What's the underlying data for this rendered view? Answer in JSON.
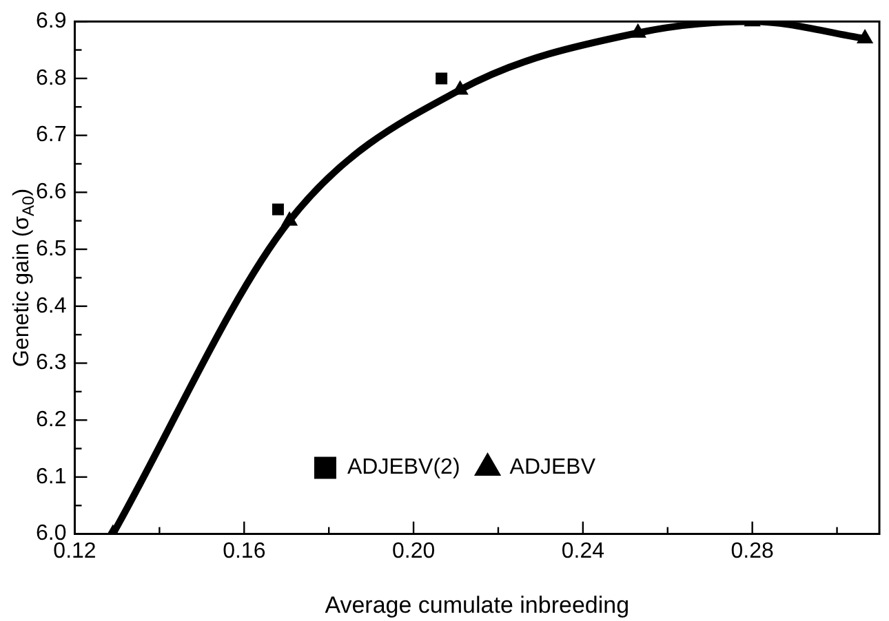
{
  "chart_data": {
    "type": "scatter",
    "xlabel": "Average cumulate inbreeding",
    "ylabel": "Genetic gain (σ$_{A0}$)",
    "xlim": [
      0.12,
      0.31
    ],
    "xticks": [
      {
        "value": 0.12,
        "label": "0.12"
      },
      {
        "value": 0.14,
        "label": null
      },
      {
        "value": 0.16,
        "label": "0.16"
      },
      {
        "value": 0.18,
        "label": null
      },
      {
        "value": 0.2,
        "label": "0.20"
      },
      {
        "value": 0.22,
        "label": null
      },
      {
        "value": 0.24,
        "label": "0.24"
      },
      {
        "value": 0.26,
        "label": null
      },
      {
        "value": 0.28,
        "label": "0.28"
      },
      {
        "value": 0.3,
        "label": null
      }
    ],
    "ylim": [
      6.0,
      6.9
    ],
    "yticks": [
      {
        "value": 6.0,
        "label": "6.0"
      },
      {
        "value": 6.05,
        "label": null
      },
      6.1,
      {
        "value": 6.15,
        "label": null
      },
      6.2,
      {
        "value": 6.25,
        "label": null
      },
      6.3,
      {
        "value": 6.35,
        "label": null
      },
      6.4,
      {
        "value": 6.45,
        "label": null
      },
      6.5,
      {
        "value": 6.55,
        "label": null
      },
      6.6,
      {
        "value": 6.65,
        "label": null
      },
      6.7,
      {
        "value": 6.75,
        "label": null
      },
      6.8,
      {
        "value": 6.85,
        "label": null
      },
      6.9
    ],
    "grid": false,
    "legend": "bottom",
    "series": [
      {
        "name": "ADJEBV(2)",
        "type": "scatter",
        "marker": "square",
        "color": "#000000",
        "x": [
          0.168,
          0.2066
        ],
        "values": [
          6.57,
          6.8
        ]
      },
      {
        "name": "ADJEBV",
        "type": "line",
        "marker": "triangle",
        "line_style": "solid",
        "color": "#000000",
        "x": [
          0.129,
          0.1707,
          0.211,
          0.253,
          0.28,
          0.3066
        ],
        "values": [
          6.0,
          6.55,
          6.78,
          6.88,
          6.9,
          6.87
        ]
      }
    ]
  }
}
